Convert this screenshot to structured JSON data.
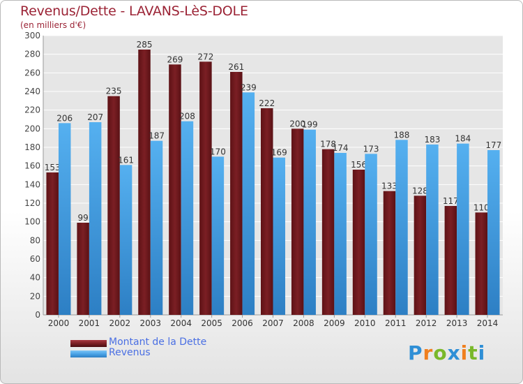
{
  "title": "Revenus/Dette - LAVANS-LèS-DOLE",
  "subtitle": "(en milliers d'€)",
  "legend": {
    "debt_label": "Montant de la Dette",
    "revenue_label": "Revenus"
  },
  "logo": [
    "P",
    "r",
    "o",
    "x",
    "i",
    "t",
    "i"
  ],
  "colors": {
    "debt": "#7b1f24",
    "revenue": "#4aa3e6",
    "title": "#9b2335",
    "legend_text": "#4a6fe3"
  },
  "chart_data": {
    "type": "bar",
    "title": "Revenus/Dette - LAVANS-LèS-DOLE",
    "subtitle": "(en milliers d'€)",
    "categories": [
      "2000",
      "2001",
      "2002",
      "2003",
      "2004",
      "2005",
      "2006",
      "2007",
      "2008",
      "2009",
      "2010",
      "2011",
      "2012",
      "2013",
      "2014"
    ],
    "series": [
      {
        "name": "Montant de la Dette",
        "values": [
          153,
          99,
          235,
          285,
          269,
          272,
          261,
          222,
          200,
          178,
          156,
          133,
          128,
          117,
          110
        ]
      },
      {
        "name": "Revenus",
        "values": [
          206,
          207,
          161,
          187,
          208,
          170,
          239,
          169,
          199,
          174,
          173,
          188,
          183,
          184,
          177
        ]
      }
    ],
    "ylim": [
      0,
      300
    ],
    "yticks": [
      0,
      20,
      40,
      60,
      80,
      100,
      120,
      140,
      160,
      180,
      200,
      220,
      240,
      260,
      280,
      300
    ],
    "grid": true,
    "legend_position": "bottom-left",
    "data_labels": true
  }
}
